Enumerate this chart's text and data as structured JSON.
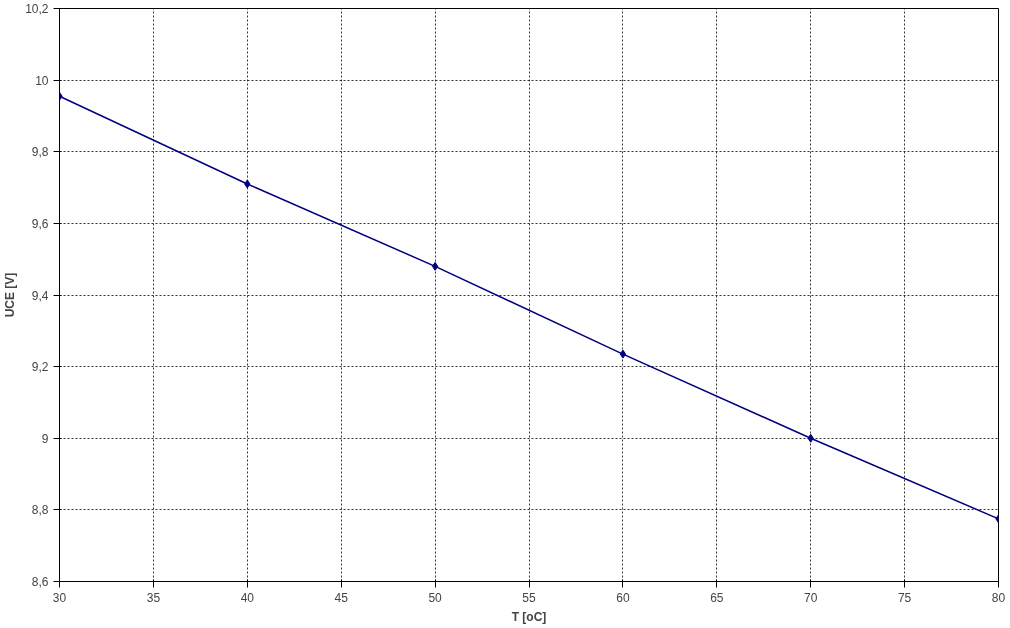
{
  "chart_data": {
    "type": "line",
    "xlabel": "T [oC]",
    "ylabel": "UCE [V]",
    "x": [
      30,
      40,
      50,
      60,
      70,
      80
    ],
    "series": [
      {
        "color": "#000080",
        "values": [
          9.955,
          9.71,
          9.48,
          9.235,
          9.0,
          8.775
        ]
      }
    ],
    "xlim": [
      30,
      80
    ],
    "xticks": [
      30,
      35,
      40,
      45,
      50,
      55,
      60,
      65,
      70,
      75,
      80
    ],
    "ylim": [
      8.6,
      10.2
    ],
    "yticks": [
      {
        "value": 8.6,
        "label": "8,6"
      },
      {
        "value": 8.8,
        "label": "8,8"
      },
      {
        "value": 9,
        "label": "9"
      },
      {
        "value": 9.2,
        "label": "9,2"
      },
      {
        "value": 9.4,
        "label": "9,4"
      },
      {
        "value": 9.6,
        "label": "9,6"
      },
      {
        "value": 9.8,
        "label": "9,8"
      },
      {
        "value": 10,
        "label": "10"
      },
      {
        "value": 10.2,
        "label": "10,2"
      }
    ],
    "grid": true,
    "marker": "diamond",
    "line_style": "solid"
  }
}
